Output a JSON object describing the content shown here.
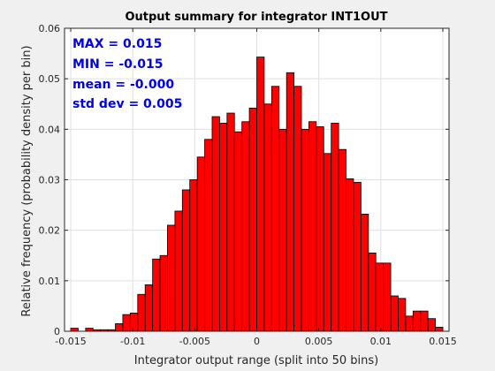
{
  "chart_data": {
    "type": "bar",
    "title": "Output summary for integrator INT1OUT",
    "xlabel": "Integrator output range (split into 50 bins)",
    "ylabel": "Relative frequency (probability density per bin)",
    "xlim": [
      -0.0155,
      0.0155
    ],
    "ylim": [
      0,
      0.06
    ],
    "xticks": [
      -0.015,
      -0.01,
      -0.005,
      0,
      0.005,
      0.01,
      0.015
    ],
    "xtick_labels": [
      "-0.015",
      "-0.01",
      "-0.005",
      "0",
      "0.005",
      "0.01",
      "0.015"
    ],
    "yticks": [
      0,
      0.01,
      0.02,
      0.03,
      0.04,
      0.05,
      0.06
    ],
    "ytick_labels": [
      "0",
      "0.01",
      "0.02",
      "0.03",
      "0.04",
      "0.05",
      "0.06"
    ],
    "grid": true,
    "bin_start": -0.015,
    "bin_width": 0.0006,
    "values": [
      0.0006,
      0.0,
      0.0006,
      0.0003,
      0.0003,
      0.0003,
      0.0015,
      0.0033,
      0.0036,
      0.0073,
      0.0092,
      0.0143,
      0.015,
      0.021,
      0.0238,
      0.028,
      0.03,
      0.0345,
      0.038,
      0.0425,
      0.0412,
      0.0432,
      0.0395,
      0.0415,
      0.0442,
      0.0543,
      0.045,
      0.0485,
      0.04,
      0.0512,
      0.0485,
      0.04,
      0.0415,
      0.0405,
      0.0352,
      0.0412,
      0.036,
      0.0302,
      0.0295,
      0.0232,
      0.0155,
      0.0135,
      0.0135,
      0.007,
      0.0065,
      0.003,
      0.004,
      0.004,
      0.0025,
      0.0008
    ],
    "bar_color": "#ff0000",
    "bar_edge_color": "#000000",
    "annotations": [
      "MAX = 0.015",
      "MIN = -0.015",
      "mean = -0.000",
      "std dev = 0.005"
    ],
    "annotation_color": "#0000e6"
  }
}
